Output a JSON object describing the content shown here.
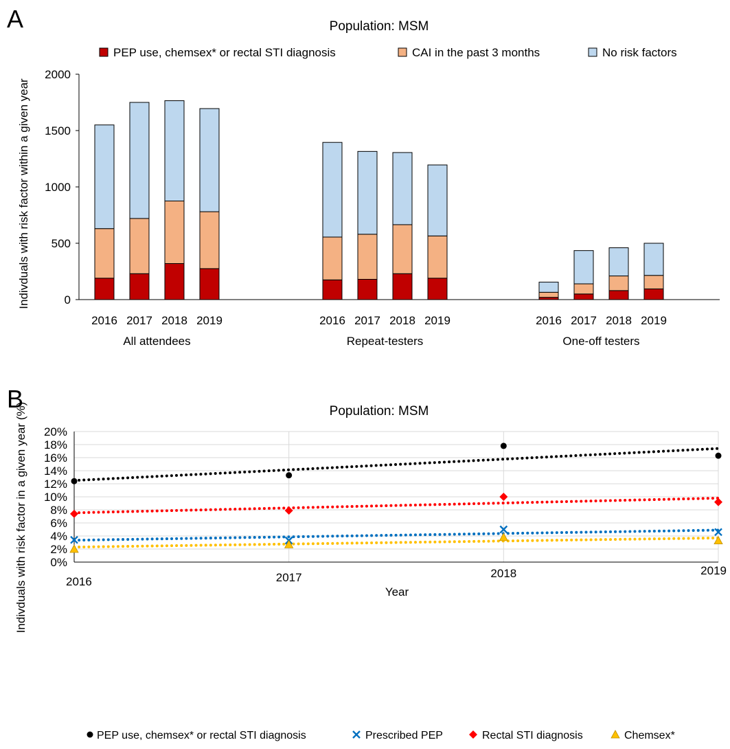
{
  "colors": {
    "pep_chemsex_sti": "#C00000",
    "cai": "#F4B183",
    "no_risk": "#BDD7EE",
    "bar_outline": "#000000",
    "line_pep_chemsex_sti": "#000000",
    "line_prescribed_pep": "#0070C0",
    "line_rectal_sti": "#FF0000",
    "line_chemsex": "#FFC000"
  },
  "chart_data": [
    {
      "panel_label": "A",
      "type": "bar",
      "stacked": true,
      "title": "Population: MSM",
      "ylabel": "Indivduals with risk factor within a given year",
      "ylim": [
        0,
        2000
      ],
      "yticks": [
        0,
        500,
        1000,
        1500,
        2000
      ],
      "grid": false,
      "legend_position": "top",
      "groups": [
        {
          "label": "All attendees",
          "categories": [
            "2016",
            "2017",
            "2018",
            "2019"
          ]
        },
        {
          "label": "Repeat-testers",
          "categories": [
            "2016",
            "2017",
            "2018",
            "2019"
          ]
        },
        {
          "label": "One-off testers",
          "categories": [
            "2016",
            "2017",
            "2018",
            "2019"
          ]
        }
      ],
      "series": [
        {
          "name": "PEP use, chemsex* or rectal STI diagnosis",
          "color_key": "pep_chemsex_sti",
          "values": [
            [
              190,
              230,
              320,
              275
            ],
            [
              175,
              180,
              230,
              190
            ],
            [
              20,
              50,
              80,
              95
            ]
          ]
        },
        {
          "name": "CAI in the past 3 months",
          "color_key": "cai",
          "values": [
            [
              440,
              490,
              555,
              505
            ],
            [
              380,
              400,
              435,
              375
            ],
            [
              45,
              90,
              130,
              120
            ]
          ]
        },
        {
          "name": "No risk factors",
          "color_key": "no_risk",
          "values": [
            [
              920,
              1030,
              890,
              915
            ],
            [
              840,
              735,
              640,
              630
            ],
            [
              90,
              295,
              250,
              285
            ]
          ]
        }
      ]
    },
    {
      "panel_label": "B",
      "type": "scatter",
      "title": "Population: MSM",
      "xlabel": "Year",
      "ylabel": "Indivduals with risk factor in a given year (%)",
      "x": [
        2016,
        2017,
        2018,
        2019
      ],
      "xticks": [
        "2016",
        "2017",
        "2018",
        "2019"
      ],
      "ylim": [
        0,
        20
      ],
      "yticks": [
        "0%",
        "2%",
        "4%",
        "6%",
        "8%",
        "10%",
        "12%",
        "14%",
        "16%",
        "18%",
        "20%"
      ],
      "grid": true,
      "legend_position": "bottom",
      "trendlines": true,
      "series": [
        {
          "name": "PEP use, chemsex* or rectal STI diagnosis",
          "marker": "circle",
          "color_key": "line_pep_chemsex_sti",
          "values": [
            12.4,
            13.3,
            17.8,
            16.3
          ],
          "trend": [
            12.5,
            17.4
          ]
        },
        {
          "name": "Prescribed PEP",
          "marker": "x",
          "color_key": "line_prescribed_pep",
          "values": [
            3.4,
            3.3,
            5.0,
            4.6
          ],
          "trend": [
            3.35,
            4.9
          ]
        },
        {
          "name": "Rectal STI diagnosis",
          "marker": "diamond",
          "color_key": "line_rectal_sti",
          "values": [
            7.4,
            7.9,
            10.0,
            9.2
          ],
          "trend": [
            7.55,
            9.8
          ]
        },
        {
          "name": "Chemsex*",
          "marker": "triangle",
          "color_key": "line_chemsex",
          "values": [
            2.0,
            2.7,
            3.8,
            3.3
          ],
          "trend": [
            2.3,
            3.7
          ]
        }
      ]
    }
  ]
}
